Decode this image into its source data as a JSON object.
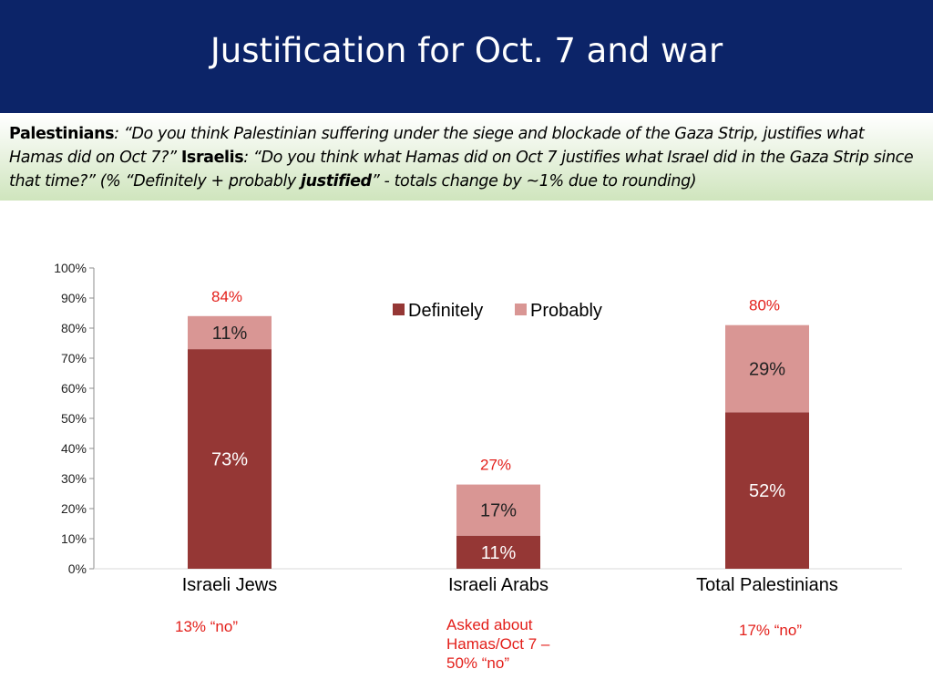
{
  "header": {
    "title": "Justification for Oct. 7 and war"
  },
  "question": {
    "group1_label": "Palestinians",
    "group1_text": ": “Do you think Palestinian suffering under the siege and blockade of the Gaza Strip, justifies what Hamas did on Oct 7?” ",
    "group2_label": "Israelis",
    "group2_text": ": “Do you think what Hamas did on Oct 7 justifies what Israel did in the Gaza Strip since that time?” (% “Definitely + probably ",
    "emphasis": "justified",
    "tail": "” - totals change by ~1% due to rounding)"
  },
  "chart_data": {
    "type": "bar",
    "stacked": true,
    "categories": [
      "Israeli Jews",
      "Israeli Arabs",
      "Total Palestinians"
    ],
    "series": [
      {
        "name": "Definitely",
        "values": [
          73,
          11,
          52
        ],
        "labels": [
          "73%",
          "11%",
          "52%"
        ],
        "color": "#953735"
      },
      {
        "name": "Probably",
        "values": [
          11,
          17,
          29
        ],
        "labels": [
          "11%",
          "17%",
          "29%"
        ],
        "color": "#d99694"
      }
    ],
    "totals": [
      84,
      27,
      80
    ],
    "total_labels": [
      "84%",
      "27%",
      "80%"
    ],
    "yticks": [
      "0%",
      "10%",
      "20%",
      "30%",
      "40%",
      "50%",
      "60%",
      "70%",
      "80%",
      "90%",
      "100%"
    ],
    "ylim": [
      0,
      100
    ],
    "legend_position": "top-center",
    "grid": false,
    "annotation_color": "#e3201b"
  },
  "notes": {
    "jews": "13% “no”",
    "arabs_line1": "Asked about",
    "arabs_line2": "Hamas/Oct 7 –",
    "arabs_line3": "50% “no”",
    "palestinians": "17% “no”"
  }
}
